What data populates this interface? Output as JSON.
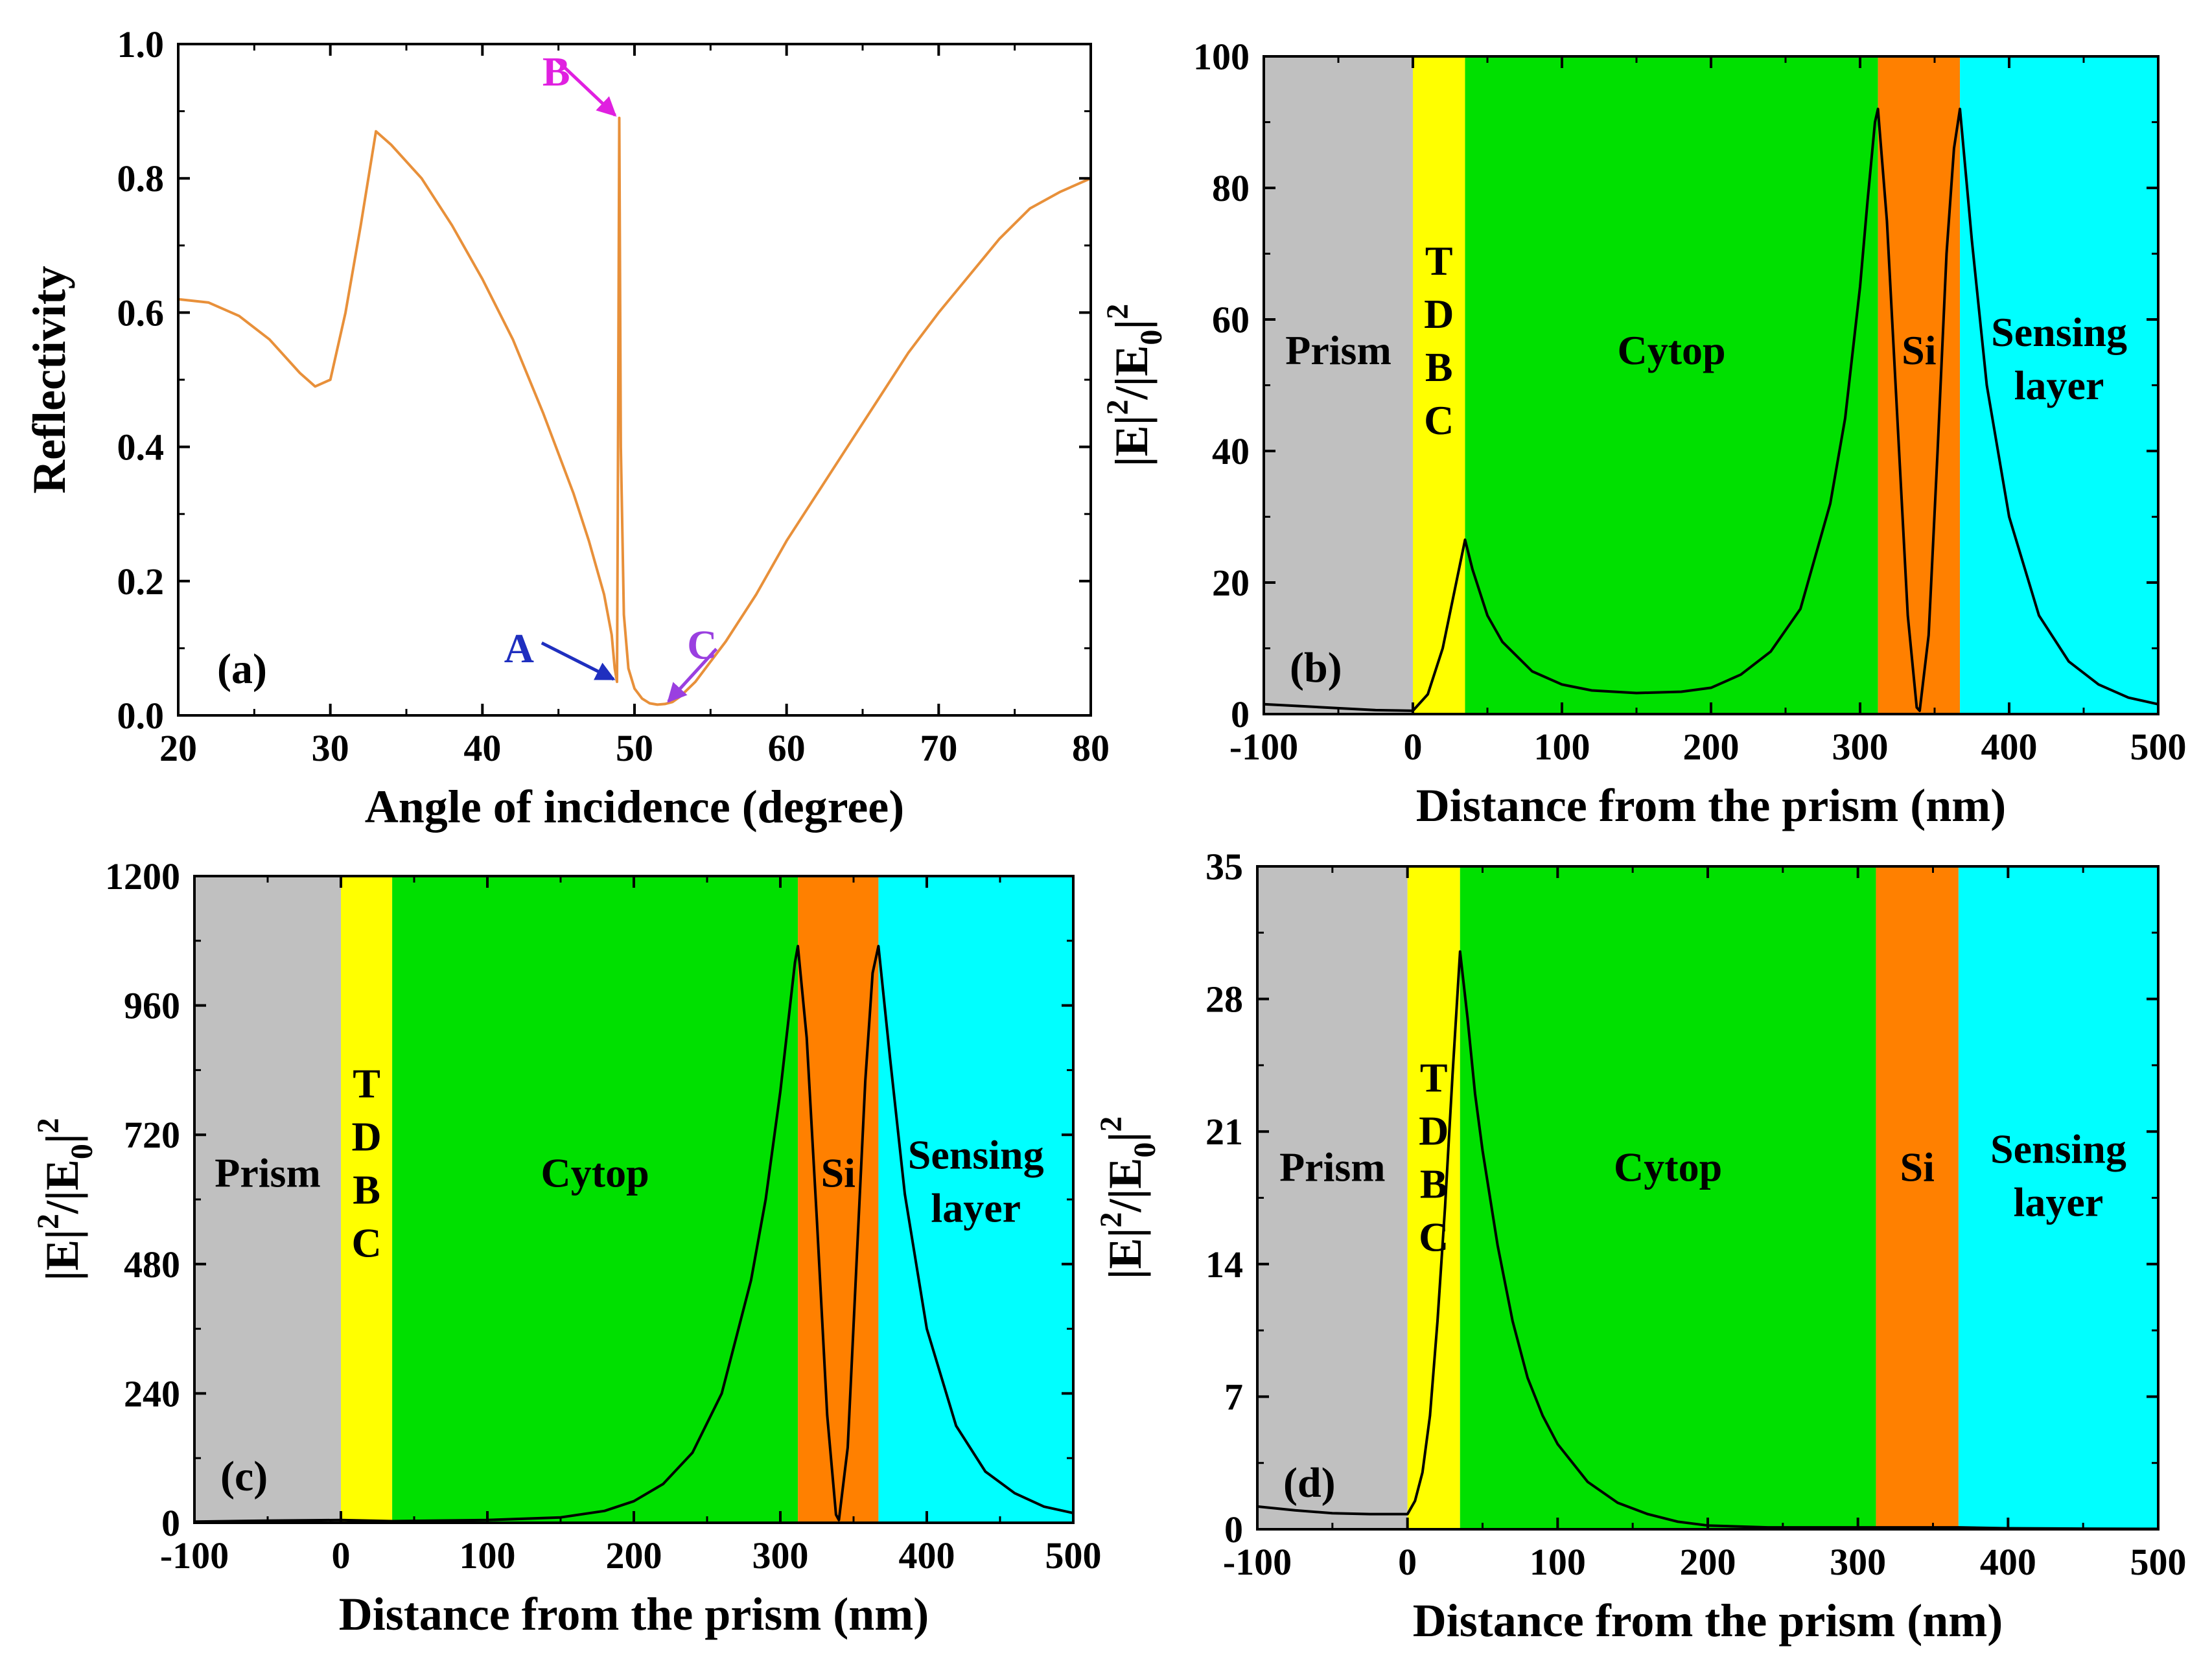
{
  "chart_data": [
    {
      "id": "a",
      "type": "line",
      "panel_label": "(a)",
      "xlabel": "Angle of incidence (degree)",
      "ylabel": "Reflectivity",
      "xlim": [
        20,
        80
      ],
      "ylim": [
        0.0,
        1.0
      ],
      "xticks": [
        20,
        30,
        40,
        50,
        60,
        70,
        80
      ],
      "xtick_labels": [
        "20",
        "30",
        "40",
        "50",
        "60",
        "70",
        "80"
      ],
      "yticks": [
        0.0,
        0.2,
        0.4,
        0.6,
        0.8,
        1.0
      ],
      "ytick_labels": [
        "0.0",
        "0.2",
        "0.4",
        "0.6",
        "0.8",
        "1.0"
      ],
      "line_color": "#e8903a",
      "series": [
        {
          "name": "Reflectivity",
          "x": [
            20,
            22,
            24,
            26,
            28,
            29,
            30,
            31,
            32,
            33,
            34,
            36,
            38,
            40,
            42,
            44,
            46,
            47,
            48,
            48.5,
            48.7,
            48.85,
            48.9,
            49.0,
            49.1,
            49.3,
            49.6,
            50.0,
            50.5,
            51.0,
            51.5,
            52.0,
            52.5,
            53.0,
            54.0,
            55.0,
            56.0,
            58.0,
            60.0,
            62.0,
            64.0,
            66.0,
            68.0,
            70.0,
            72.0,
            74.0,
            76.0,
            78.0,
            80.0
          ],
          "y": [
            0.62,
            0.615,
            0.595,
            0.56,
            0.51,
            0.49,
            0.5,
            0.6,
            0.73,
            0.87,
            0.85,
            0.8,
            0.73,
            0.65,
            0.56,
            0.45,
            0.33,
            0.26,
            0.18,
            0.12,
            0.07,
            0.05,
            0.3,
            0.89,
            0.4,
            0.15,
            0.07,
            0.04,
            0.025,
            0.018,
            0.016,
            0.017,
            0.02,
            0.028,
            0.05,
            0.08,
            0.11,
            0.18,
            0.26,
            0.33,
            0.4,
            0.47,
            0.54,
            0.6,
            0.655,
            0.71,
            0.755,
            0.78,
            0.8
          ]
        }
      ],
      "annotations": [
        {
          "text": "A",
          "target": [
            48.8,
            0.05
          ],
          "color": "#1f2fbf"
        },
        {
          "text": "B",
          "target": [
            48.9,
            0.89
          ],
          "color": "#e020e0"
        },
        {
          "text": "C",
          "target": [
            52.4,
            0.017
          ],
          "color": "#9a3fe0"
        }
      ]
    },
    {
      "id": "b",
      "type": "line",
      "panel_label": "(b)",
      "xlabel": "Distance from the prism (nm)",
      "ylabel": "|E|2/|E0|2",
      "xlim": [
        -100,
        500
      ],
      "ylim": [
        0,
        100
      ],
      "xticks": [
        -100,
        0,
        100,
        200,
        300,
        400,
        500
      ],
      "xtick_labels": [
        "-100",
        "0",
        "100",
        "200",
        "300",
        "400",
        "500"
      ],
      "yticks": [
        0,
        20,
        40,
        60,
        80,
        100
      ],
      "ytick_labels": [
        "0",
        "20",
        "40",
        "60",
        "80",
        "100"
      ],
      "regions": [
        {
          "label": "Prism",
          "x0": -100,
          "x1": 0,
          "color": "#c0c0c0",
          "label_y": 55
        },
        {
          "label": "T D B C",
          "x0": 0,
          "x1": 35,
          "color": "#ffff00",
          "label_y": 55
        },
        {
          "label": "Cytop",
          "x0": 35,
          "x1": 312,
          "color": "#00e000",
          "label_y": 55
        },
        {
          "label": "Si",
          "x0": 312,
          "x1": 367,
          "color": "#ff8000",
          "label_y": 55
        },
        {
          "label": "Sensing layer",
          "x0": 367,
          "x1": 500,
          "color": "#00ffff",
          "label_y": 55
        }
      ],
      "series": [
        {
          "name": "field",
          "x": [
            -100,
            -75,
            -50,
            -25,
            0,
            10,
            20,
            30,
            35,
            40,
            50,
            60,
            80,
            100,
            120,
            150,
            180,
            200,
            220,
            240,
            260,
            280,
            290,
            300,
            305,
            310,
            312,
            318,
            325,
            332,
            338,
            340,
            346,
            352,
            358,
            363,
            367,
            375,
            385,
            400,
            420,
            440,
            460,
            480,
            500
          ],
          "y": [
            1.5,
            1.2,
            0.9,
            0.6,
            0.5,
            3,
            10,
            21,
            26.5,
            22,
            15,
            11,
            6.5,
            4.5,
            3.6,
            3.2,
            3.4,
            4,
            6,
            9.5,
            16,
            32,
            45,
            65,
            78,
            90,
            92,
            75,
            45,
            15,
            1,
            0.5,
            12,
            40,
            70,
            86,
            92,
            72,
            50,
            30,
            15,
            8,
            4.5,
            2.5,
            1.5
          ]
        }
      ]
    },
    {
      "id": "c",
      "type": "line",
      "panel_label": "(c)",
      "xlabel": "Distance from the prism (nm)",
      "ylabel": "|E|2/|E0|2",
      "xlim": [
        -100,
        500
      ],
      "ylim": [
        0,
        1200
      ],
      "xticks": [
        -100,
        0,
        100,
        200,
        300,
        400,
        500
      ],
      "xtick_labels": [
        "-100",
        "0",
        "100",
        "200",
        "300",
        "400",
        "500"
      ],
      "yticks": [
        0,
        240,
        480,
        720,
        960,
        1200
      ],
      "ytick_labels": [
        "0",
        "240",
        "480",
        "720",
        "960",
        "1200"
      ],
      "regions": [
        {
          "label": "Prism",
          "x0": -100,
          "x1": 0,
          "color": "#c0c0c0",
          "label_y": 645
        },
        {
          "label": "T D B C",
          "x0": 0,
          "x1": 35,
          "color": "#ffff00",
          "label_y": 645
        },
        {
          "label": "Cytop",
          "x0": 35,
          "x1": 312,
          "color": "#00e000",
          "label_y": 645
        },
        {
          "label": "Si",
          "x0": 312,
          "x1": 367,
          "color": "#ff8000",
          "label_y": 645
        },
        {
          "label": "Sensing layer",
          "x0": 367,
          "x1": 500,
          "color": "#00ffff",
          "label_y": 645
        }
      ],
      "series": [
        {
          "name": "field",
          "x": [
            -100,
            -50,
            0,
            35,
            100,
            150,
            180,
            200,
            220,
            240,
            260,
            280,
            290,
            300,
            305,
            310,
            312,
            318,
            325,
            332,
            338,
            340,
            346,
            352,
            358,
            363,
            367,
            375,
            385,
            400,
            420,
            440,
            460,
            480,
            500
          ],
          "y": [
            2,
            4,
            5,
            3,
            5,
            10,
            22,
            40,
            72,
            130,
            240,
            450,
            600,
            800,
            920,
            1040,
            1070,
            900,
            560,
            200,
            15,
            5,
            140,
            480,
            820,
            1020,
            1070,
            860,
            610,
            360,
            180,
            95,
            55,
            30,
            18
          ]
        }
      ]
    },
    {
      "id": "d",
      "type": "line",
      "panel_label": "(d)",
      "xlabel": "Distance from the prism (nm)",
      "ylabel": "|E|2/|E0|2",
      "xlim": [
        -100,
        500
      ],
      "ylim": [
        0,
        35
      ],
      "xticks": [
        -100,
        0,
        100,
        200,
        300,
        400,
        500
      ],
      "xtick_labels": [
        "-100",
        "0",
        "100",
        "200",
        "300",
        "400",
        "500"
      ],
      "yticks": [
        0,
        7,
        14,
        21,
        28,
        35
      ],
      "ytick_labels": [
        "0",
        "7",
        "14",
        "21",
        "28",
        "35"
      ],
      "regions": [
        {
          "label": "Prism",
          "x0": -100,
          "x1": 0,
          "color": "#c0c0c0",
          "label_y": 19
        },
        {
          "label": "T D B C",
          "x0": 0,
          "x1": 35,
          "color": "#ffff00",
          "label_y": 19
        },
        {
          "label": "Cytop",
          "x0": 35,
          "x1": 312,
          "color": "#00e000",
          "label_y": 19
        },
        {
          "label": "Si",
          "x0": 312,
          "x1": 367,
          "color": "#ff8000",
          "label_y": 19
        },
        {
          "label": "Sensing layer",
          "x0": 367,
          "x1": 500,
          "color": "#00ffff",
          "label_y": 19
        }
      ],
      "series": [
        {
          "name": "field",
          "x": [
            -100,
            -75,
            -50,
            -25,
            0,
            5,
            10,
            15,
            20,
            25,
            30,
            35,
            40,
            45,
            50,
            60,
            70,
            80,
            90,
            100,
            120,
            140,
            160,
            180,
            200,
            240,
            280,
            312,
            340,
            367,
            400,
            450,
            500
          ],
          "y": [
            1.2,
            1.0,
            0.85,
            0.8,
            0.8,
            1.5,
            3,
            6,
            11,
            17,
            24,
            30.5,
            27,
            23,
            20,
            15,
            11,
            8,
            6,
            4.5,
            2.5,
            1.4,
            0.8,
            0.4,
            0.2,
            0.1,
            0.1,
            0.1,
            0.1,
            0.1,
            0.05,
            0.03,
            0.02
          ]
        }
      ]
    }
  ]
}
